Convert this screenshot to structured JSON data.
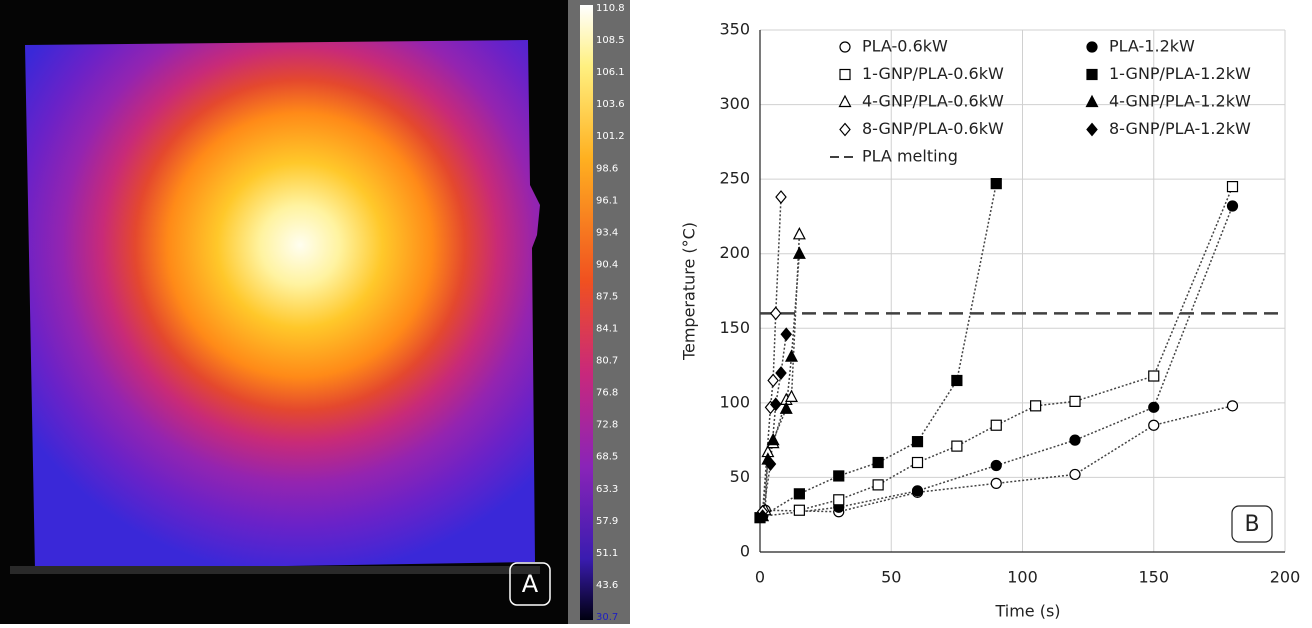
{
  "chart_data": [
    {
      "type": "thermal",
      "label": "A",
      "colorbar_ticks": [
        {
          "value": 110.8,
          "label": "110.8"
        },
        {
          "value": 108.5,
          "label": "108.5"
        },
        {
          "value": 106.1,
          "label": "106.1"
        },
        {
          "value": 103.6,
          "label": "103.6"
        },
        {
          "value": 101.2,
          "label": "101.2"
        },
        {
          "value": 98.6,
          "label": "98.6"
        },
        {
          "value": 96.1,
          "label": "96.1"
        },
        {
          "value": 93.4,
          "label": "93.4"
        },
        {
          "value": 90.4,
          "label": "90.4"
        },
        {
          "value": 87.5,
          "label": "87.5"
        },
        {
          "value": 84.1,
          "label": "84.1"
        },
        {
          "value": 80.7,
          "label": "80.7"
        },
        {
          "value": 76.8,
          "label": "76.8"
        },
        {
          "value": 72.8,
          "label": "72.8"
        },
        {
          "value": 68.5,
          "label": "68.5"
        },
        {
          "value": 63.3,
          "label": "63.3"
        },
        {
          "value": 57.9,
          "label": "57.9"
        },
        {
          "value": 51.1,
          "label": "51.1"
        },
        {
          "value": 43.6,
          "label": "43.6"
        },
        {
          "value": 30.7,
          "label": "30.7"
        }
      ]
    },
    {
      "type": "line",
      "label": "B",
      "xlabel": "Time (s)",
      "ylabel": "Temperature (°C)",
      "xlim": [
        0,
        200
      ],
      "ylim": [
        0,
        350
      ],
      "xticks": [
        0,
        50,
        100,
        150,
        200
      ],
      "yticks": [
        0,
        50,
        100,
        150,
        200,
        250,
        300,
        350
      ],
      "grid": true,
      "series": [
        {
          "name": "PLA-0.6kW",
          "color": "#000000",
          "marker": "circle",
          "filled": false,
          "x": [
            2,
            30,
            60,
            90,
            120,
            150,
            180
          ],
          "values": [
            28,
            27,
            40,
            46,
            52,
            85,
            98
          ]
        },
        {
          "name": "PLA-1.2kW",
          "color": "#000000",
          "marker": "circle",
          "filled": true,
          "x": [
            1,
            30,
            60,
            90,
            120,
            150,
            180
          ],
          "values": [
            24,
            30,
            41,
            58,
            75,
            97,
            232
          ]
        },
        {
          "name": "1-GNP/PLA-0.6kW",
          "color": "#000000",
          "marker": "square",
          "filled": false,
          "x": [
            15,
            30,
            45,
            60,
            75,
            90,
            105,
            120,
            150,
            180
          ],
          "values": [
            28,
            35,
            45,
            60,
            71,
            85,
            98,
            101,
            118,
            245
          ]
        },
        {
          "name": "1-GNP/PLA-1.2kW",
          "color": "#000000",
          "marker": "square",
          "filled": true,
          "x": [
            0,
            15,
            30,
            45,
            60,
            75,
            90
          ],
          "values": [
            23,
            39,
            51,
            60,
            74,
            115,
            247
          ]
        },
        {
          "name": "4-GNP/PLA-0.6kW",
          "color": "#000000",
          "marker": "triangle",
          "filled": false,
          "x": [
            2,
            3,
            5,
            10,
            12,
            15
          ],
          "values": [
            28,
            67,
            73,
            102,
            104,
            213
          ]
        },
        {
          "name": "4-GNP/PLA-1.2kW",
          "color": "#000000",
          "marker": "triangle",
          "filled": true,
          "x": [
            1,
            3,
            5,
            10,
            12,
            15
          ],
          "values": [
            24,
            62,
            75,
            96,
            131,
            200
          ]
        },
        {
          "name": "8-GNP/PLA-0.6kW",
          "color": "#000000",
          "marker": "diamond",
          "filled": false,
          "x": [
            1,
            4,
            5,
            6,
            8
          ],
          "values": [
            27,
            97,
            115,
            160,
            238
          ]
        },
        {
          "name": "8-GNP/PLA-1.2kW",
          "color": "#000000",
          "marker": "diamond",
          "filled": true,
          "x": [
            1,
            4,
            6,
            8,
            10
          ],
          "values": [
            24,
            59,
            99,
            120,
            146
          ]
        }
      ],
      "reference_lines": [
        {
          "name": "PLA melting",
          "value": 160,
          "color": "#404040"
        }
      ]
    }
  ]
}
